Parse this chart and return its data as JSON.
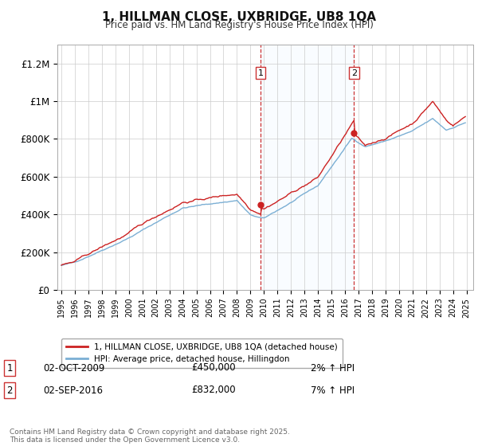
{
  "title": "1, HILLMAN CLOSE, UXBRIDGE, UB8 1QA",
  "subtitle": "Price paid vs. HM Land Registry's House Price Index (HPI)",
  "ylim": [
    0,
    1300000
  ],
  "yticks": [
    0,
    200000,
    400000,
    600000,
    800000,
    1000000,
    1200000
  ],
  "ytick_labels": [
    "£0",
    "£200K",
    "£400K",
    "£600K",
    "£800K",
    "£1M",
    "£1.2M"
  ],
  "background_color": "#ffffff",
  "plot_bg_color": "#ffffff",
  "grid_color": "#cccccc",
  "hpi_line_color": "#7bafd4",
  "price_line_color": "#cc2222",
  "sale1_year": 2009.75,
  "sale1_price": 450000,
  "sale2_year": 2016.67,
  "sale2_price": 832000,
  "vline_color": "#cc3333",
  "shade_color": "#ddeeff",
  "legend_label_price": "1, HILLMAN CLOSE, UXBRIDGE, UB8 1QA (detached house)",
  "legend_label_hpi": "HPI: Average price, detached house, Hillingdon",
  "annotation1_label": "1",
  "annotation2_label": "2",
  "annotation1_date": "02-OCT-2009",
  "annotation1_price": "£450,000",
  "annotation1_hpi": "2% ↑ HPI",
  "annotation2_date": "02-SEP-2016",
  "annotation2_price": "£832,000",
  "annotation2_hpi": "7% ↑ HPI",
  "footer": "Contains HM Land Registry data © Crown copyright and database right 2025.\nThis data is licensed under the Open Government Licence v3.0.",
  "xstart": 1994.7,
  "xend": 2025.5
}
